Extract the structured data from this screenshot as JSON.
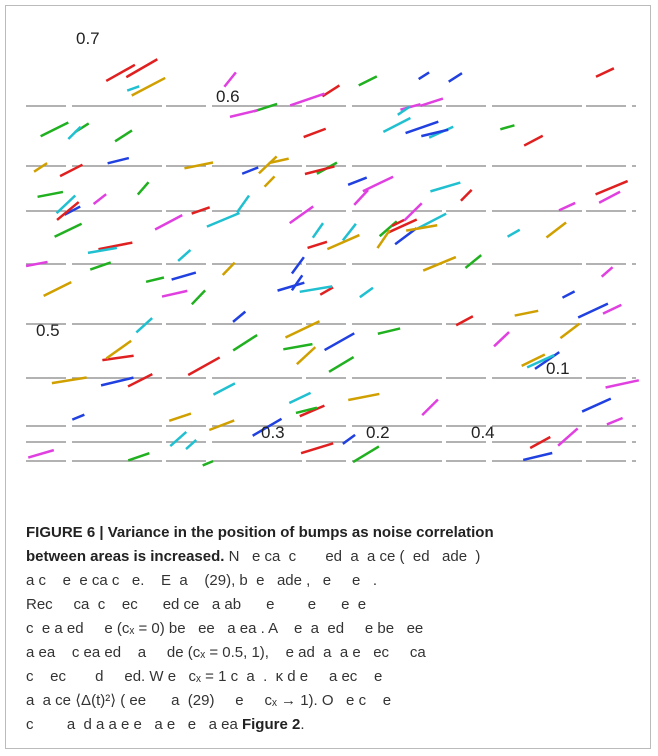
{
  "figure": {
    "axis_fragments": [
      "0.7",
      "0.6",
      "0.5",
      "0.1",
      "0.3",
      "0.2",
      "0.4"
    ],
    "caption": {
      "label": "FIGURE 6 | Variance in the position of bumps as noise correlation",
      "label_cont": "between areas is increased.",
      "lines": [
        "N   e ca  c       ed  a  a ce (  ed   ade  )",
        "a c    e  e ca c   e.    E  a    (29), b  e   ade ,   e     e   .",
        "Rec     ca  c    ec      ed ce   a ab      e        e      e  e",
        "c  e a ed     e (cₓ = 0) be   ee   a ea . A    e  a  ed     e be   ee",
        "a ea    c ea ed    a     de (cₓ = 0.5, 1),    e ad  a  a e   ec     ca",
        "c    ec       d     ed. W e   cₓ = 1 c  a  .  κ d e     a ec    e",
        "a  a ce ⟨Δ(t)²⟩ ( ee      a  (29)     e     cₓ → 1). O   e c    e",
        "c        a  d a a e e   a e   e   a ea"
      ],
      "figure_ref": "Figure 2"
    }
  }
}
